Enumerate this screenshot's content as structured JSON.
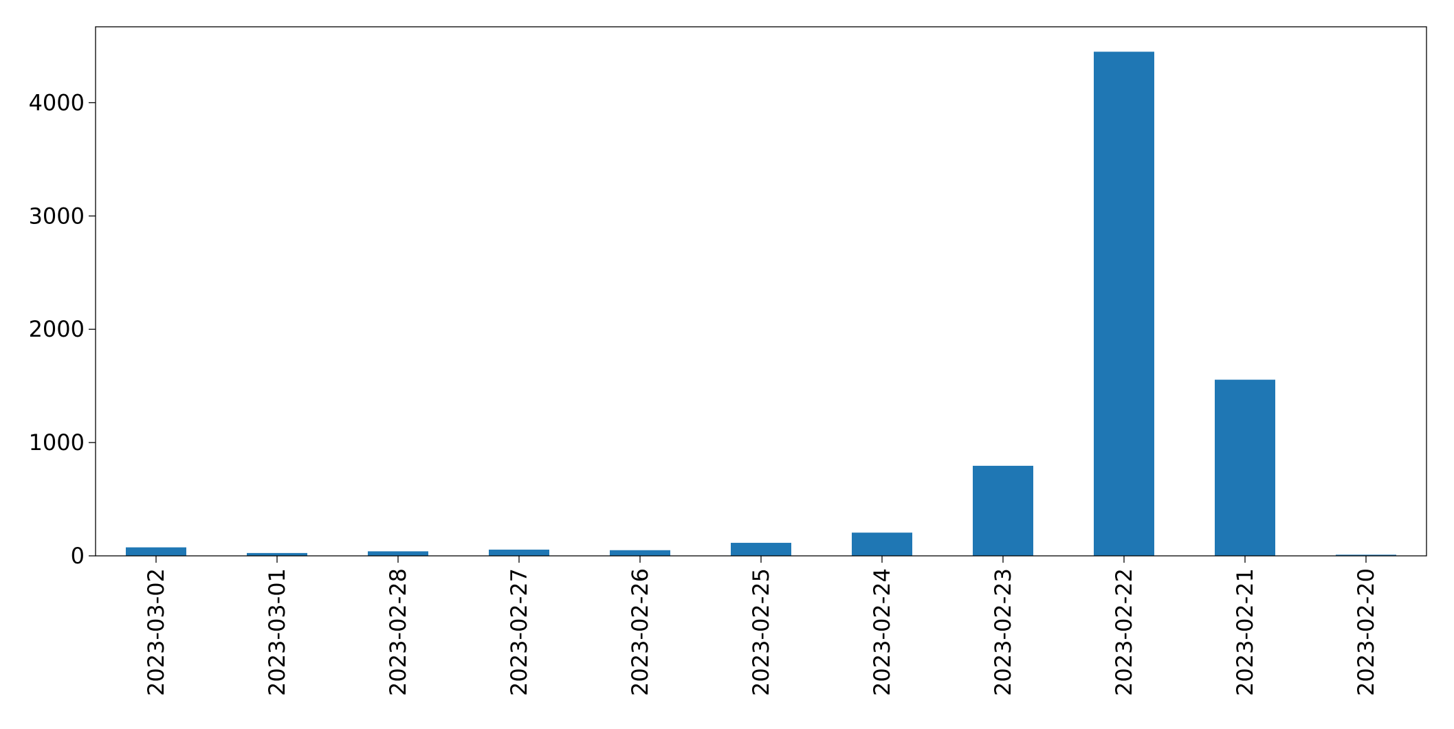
{
  "chart_data": {
    "type": "bar",
    "categories": [
      "2023-03-02",
      "2023-03-01",
      "2023-02-28",
      "2023-02-27",
      "2023-02-26",
      "2023-02-25",
      "2023-02-24",
      "2023-02-23",
      "2023-02-22",
      "2023-02-21",
      "2023-02-20"
    ],
    "values": [
      75,
      25,
      40,
      55,
      50,
      115,
      205,
      795,
      4450,
      1555,
      10
    ],
    "color": "#1f77b4",
    "ylim": [
      0,
      4670
    ],
    "yticks": [
      0,
      1000,
      2000,
      3000,
      4000
    ],
    "grid": false
  }
}
